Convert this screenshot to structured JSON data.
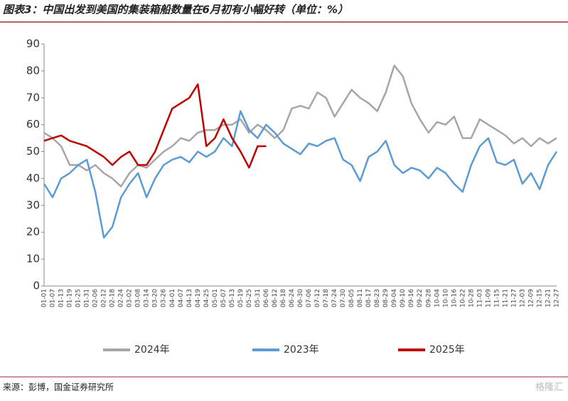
{
  "chart_data": {
    "type": "line",
    "title": "图表3：中国出发到美国的集装箱船数量在6月初有小幅好转（单位：%）",
    "source": "来源：彭博，国金证券研究所",
    "watermark": "格隆汇",
    "categories": [
      "01-01",
      "01-07",
      "01-13",
      "01-19",
      "01-25",
      "01-31",
      "02-06",
      "02-12",
      "02-18",
      "02-24",
      "03-02",
      "03-08",
      "03-14",
      "03-20",
      "03-26",
      "04-01",
      "04-07",
      "04-13",
      "04-19",
      "04-25",
      "05-01",
      "05-07",
      "05-13",
      "05-19",
      "05-25",
      "05-31",
      "06-06",
      "06-12",
      "06-18",
      "06-24",
      "06-30",
      "07-06",
      "07-12",
      "07-18",
      "07-24",
      "07-30",
      "08-05",
      "08-11",
      "08-17",
      "08-23",
      "08-29",
      "09-04",
      "09-10",
      "09-16",
      "09-22",
      "09-28",
      "10-04",
      "10-10",
      "10-16",
      "10-22",
      "10-28",
      "11-03",
      "11-09",
      "11-15",
      "11-21",
      "11-27",
      "12-03",
      "12-09",
      "12-15",
      "12-21",
      "12-27"
    ],
    "series": [
      {
        "name": "2024年",
        "color": "#a6a6a6",
        "values": [
          57,
          55,
          52,
          45,
          45,
          43,
          45,
          42,
          40,
          37,
          42,
          45,
          44,
          47,
          50,
          52,
          55,
          54,
          57,
          58,
          58,
          60,
          60,
          62,
          57,
          60,
          58,
          55,
          58,
          66,
          67,
          66,
          72,
          70,
          63,
          68,
          73,
          70,
          68,
          65,
          72,
          82,
          78,
          68,
          62,
          57,
          61,
          60,
          63,
          55,
          55,
          62,
          60,
          58,
          56,
          53,
          55,
          52,
          55,
          53,
          55
        ]
      },
      {
        "name": "2023年",
        "color": "#5b9bd5",
        "values": [
          38,
          33,
          40,
          42,
          45,
          47,
          35,
          18,
          22,
          33,
          38,
          42,
          33,
          40,
          45,
          47,
          48,
          46,
          50,
          48,
          50,
          55,
          52,
          65,
          58,
          55,
          60,
          57,
          53,
          51,
          49,
          53,
          52,
          54,
          55,
          47,
          45,
          39,
          48,
          50,
          54,
          45,
          42,
          44,
          43,
          40,
          44,
          42,
          38,
          35,
          45,
          52,
          55,
          46,
          45,
          47,
          38,
          42,
          36,
          45,
          50
        ]
      },
      {
        "name": "2025年",
        "color": "#c00000",
        "values": [
          54,
          55,
          56,
          54,
          53,
          52,
          50,
          48,
          45,
          48,
          50,
          45,
          45,
          50,
          58,
          66,
          68,
          70,
          75,
          52,
          55,
          62,
          55,
          50,
          44,
          52,
          52,
          null,
          null,
          null,
          null,
          null,
          null,
          null,
          null,
          null,
          null,
          null,
          null,
          null,
          null,
          null,
          null,
          null,
          null,
          null,
          null,
          null,
          null,
          null,
          null,
          null,
          null,
          null,
          null,
          null,
          null,
          null,
          null,
          null,
          null
        ]
      }
    ],
    "ylim": [
      0,
      90
    ],
    "yticks": [
      0,
      10,
      20,
      30,
      40,
      50,
      60,
      70,
      80,
      90
    ],
    "grid": false,
    "legend": "bottom"
  }
}
